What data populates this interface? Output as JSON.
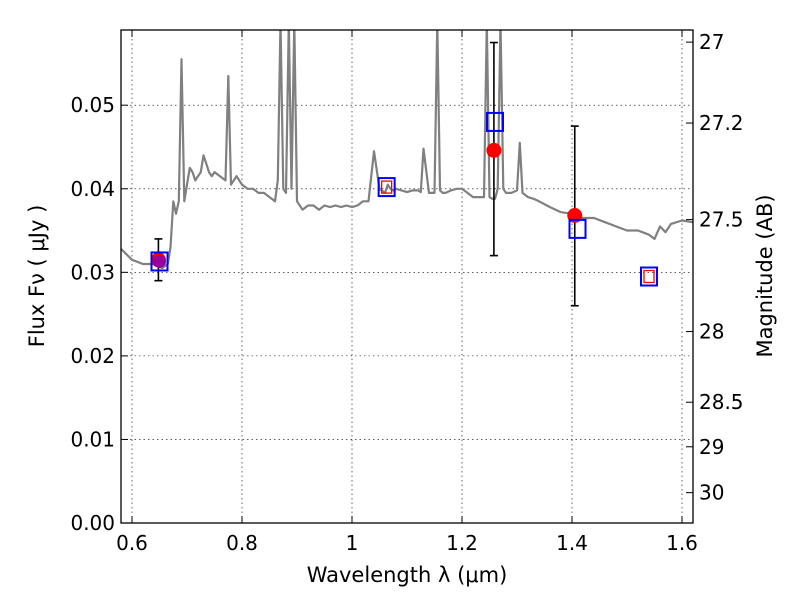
{
  "chart_data": {
    "type": "scatter",
    "title": "",
    "xlabel": "Wavelength  λ (μm)",
    "ylabel": "Flux  Fν  ( μJy )",
    "y2label": "Magnitude (AB)",
    "xlim": [
      0.58,
      1.62
    ],
    "ylim": [
      0.0,
      0.059
    ],
    "x_ticks": [
      0.6,
      0.8,
      1.0,
      1.2,
      1.4,
      1.6
    ],
    "x_tick_labels": [
      "0.6",
      "0.8",
      "1",
      "1.2",
      "1.4",
      "1.6"
    ],
    "y_ticks": [
      0.0,
      0.01,
      0.02,
      0.03,
      0.04,
      0.05
    ],
    "y_tick_labels": [
      "0.00",
      "0.01",
      "0.02",
      "0.03",
      "0.04",
      "0.05"
    ],
    "y2_ticks": [
      27,
      27.2,
      27.5,
      28,
      28.5,
      29,
      30
    ],
    "y2_tick_labels": [
      "27",
      "27.2",
      "27.5",
      "28",
      "28.5",
      "29",
      "30"
    ],
    "grid": true,
    "colors": {
      "sed": "#808080",
      "observed": "#ff0000",
      "model_box": "#0000ff",
      "model_inner": "#ff0000",
      "error_bar": "#000000",
      "overlap": "#990099"
    },
    "series": [
      {
        "role": "sed_model_line",
        "x": [
          0.58,
          0.6,
          0.62,
          0.64,
          0.655,
          0.665,
          0.67,
          0.675,
          0.68,
          0.685,
          0.69,
          0.695,
          0.7,
          0.705,
          0.71,
          0.715,
          0.72,
          0.725,
          0.73,
          0.735,
          0.74,
          0.745,
          0.75,
          0.76,
          0.77,
          0.775,
          0.78,
          0.785,
          0.79,
          0.8,
          0.81,
          0.82,
          0.83,
          0.84,
          0.85,
          0.86,
          0.865,
          0.87,
          0.875,
          0.88,
          0.885,
          0.89,
          0.895,
          0.9,
          0.91,
          0.92,
          0.93,
          0.94,
          0.95,
          0.96,
          0.97,
          0.98,
          0.99,
          1.0,
          1.01,
          1.02,
          1.03,
          1.04,
          1.05,
          1.06,
          1.065,
          1.07,
          1.075,
          1.08,
          1.09,
          1.1,
          1.11,
          1.12,
          1.125,
          1.13,
          1.14,
          1.15,
          1.155,
          1.16,
          1.165,
          1.17,
          1.18,
          1.19,
          1.2,
          1.21,
          1.22,
          1.23,
          1.24,
          1.245,
          1.25,
          1.255,
          1.26,
          1.265,
          1.27,
          1.275,
          1.28,
          1.29,
          1.3,
          1.305,
          1.31,
          1.32,
          1.33,
          1.34,
          1.36,
          1.38,
          1.4,
          1.42,
          1.44,
          1.46,
          1.48,
          1.5,
          1.52,
          1.54,
          1.55,
          1.56,
          1.57,
          1.58,
          1.6,
          1.62
        ],
        "y": [
          0.0328,
          0.0315,
          0.031,
          0.031,
          0.0305,
          0.031,
          0.033,
          0.0385,
          0.037,
          0.0385,
          0.0555,
          0.0385,
          0.0405,
          0.0425,
          0.042,
          0.041,
          0.0415,
          0.042,
          0.044,
          0.043,
          0.042,
          0.0415,
          0.042,
          0.0415,
          0.041,
          0.0535,
          0.0405,
          0.041,
          0.0415,
          0.0405,
          0.04,
          0.04,
          0.0395,
          0.0395,
          0.039,
          0.0385,
          0.041,
          0.06,
          0.04,
          0.0395,
          0.06,
          0.04,
          0.06,
          0.0385,
          0.0375,
          0.038,
          0.038,
          0.0375,
          0.038,
          0.0378,
          0.038,
          0.0378,
          0.038,
          0.0378,
          0.038,
          0.0385,
          0.0385,
          0.0445,
          0.04,
          0.0395,
          0.0405,
          0.04,
          0.0398,
          0.04,
          0.0398,
          0.0396,
          0.0398,
          0.0398,
          0.0396,
          0.0448,
          0.0395,
          0.0395,
          0.06,
          0.0398,
          0.0395,
          0.0395,
          0.0398,
          0.04,
          0.04,
          0.0395,
          0.039,
          0.039,
          0.039,
          0.06,
          0.039,
          0.0388,
          0.0388,
          0.04,
          0.06,
          0.04,
          0.0395,
          0.0395,
          0.0398,
          0.0455,
          0.0395,
          0.039,
          0.0388,
          0.0385,
          0.0378,
          0.0372,
          0.037,
          0.0365,
          0.0365,
          0.036,
          0.0355,
          0.035,
          0.035,
          0.0345,
          0.034,
          0.0355,
          0.0348,
          0.0358,
          0.0362,
          0.036
        ]
      },
      {
        "role": "observed_points",
        "x": [
          0.648,
          1.258,
          1.405
        ],
        "y": [
          0.0315,
          0.0446,
          0.0368
        ],
        "yerr_low": [
          0.029,
          0.032,
          0.026
        ],
        "yerr_high": [
          0.034,
          0.0575,
          0.0475
        ]
      },
      {
        "role": "model_photometry_boxes",
        "x": [
          0.65,
          1.063,
          1.26,
          1.41,
          1.54
        ],
        "y": [
          0.0313,
          0.0402,
          0.048,
          0.0352,
          0.0295
        ],
        "inner_red": [
          false,
          true,
          false,
          false,
          true
        ]
      }
    ]
  }
}
